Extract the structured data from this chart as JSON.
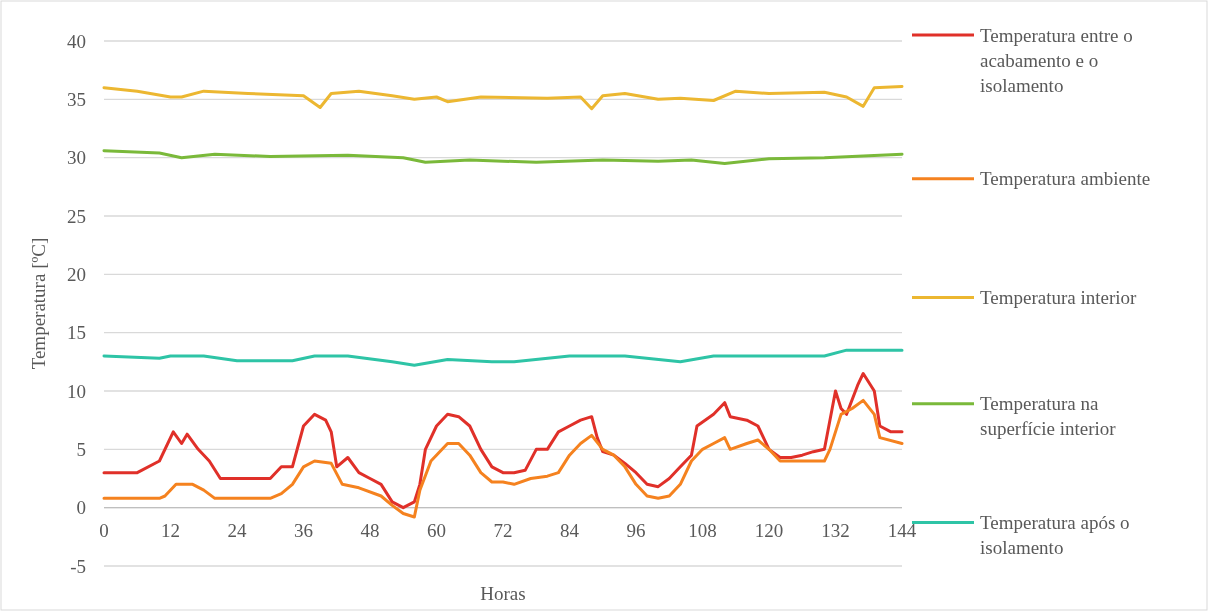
{
  "chart_data": {
    "type": "line",
    "xlabel": "Horas",
    "ylabel": "Temperatura [ºC]",
    "xlim": [
      0,
      144
    ],
    "xticks": [
      0,
      12,
      24,
      36,
      48,
      60,
      72,
      84,
      96,
      108,
      120,
      132,
      144
    ],
    "ylim": [
      -5,
      40
    ],
    "yticks": [
      -5,
      0,
      5,
      10,
      15,
      20,
      25,
      30,
      35,
      40
    ],
    "grid": "y",
    "legend": "right",
    "line_style": "solid",
    "series": [
      {
        "name": "Temperatura entre o acabamento e o isolamento",
        "color": "#e03029",
        "x": [
          0,
          2,
          6,
          10,
          12.5,
          14,
          15,
          17,
          19,
          21,
          24,
          30,
          32,
          34,
          36,
          38,
          40,
          41,
          42,
          44,
          46,
          48,
          50,
          52,
          54,
          56,
          57,
          58,
          60,
          62,
          64,
          66,
          68,
          70,
          72,
          74,
          76,
          78,
          80,
          82,
          84,
          86,
          88,
          89,
          90,
          92,
          94,
          96,
          98,
          100,
          102,
          104,
          106,
          107,
          110,
          112,
          113,
          116,
          118,
          120,
          122,
          124,
          126,
          128,
          130,
          132,
          133,
          134,
          136,
          137,
          139,
          140,
          142,
          144
        ],
        "values": [
          3,
          3,
          3,
          4,
          6.5,
          5.5,
          6.3,
          5,
          4,
          2.5,
          2.5,
          2.5,
          3.5,
          3.5,
          7,
          8,
          7.5,
          6.5,
          3.5,
          4.3,
          3,
          2.5,
          2,
          0.5,
          0,
          0.5,
          2,
          5,
          7,
          8,
          7.8,
          7,
          5,
          3.5,
          3,
          3,
          3.2,
          5,
          5,
          6.5,
          7,
          7.5,
          7.8,
          6,
          4.8,
          4.5,
          3.8,
          3,
          2,
          1.8,
          2.5,
          3.5,
          4.5,
          7,
          8,
          9,
          7.8,
          7.5,
          7,
          5,
          4.3,
          4.3,
          4.5,
          4.8,
          5,
          10,
          8.5,
          8,
          10.5,
          11.5,
          10,
          7,
          6.5,
          6.5
        ]
      },
      {
        "name": "Temperatura ambiente",
        "color": "#f5821f",
        "x": [
          0,
          10,
          11,
          13,
          16,
          18,
          20,
          30,
          32,
          34,
          36,
          38,
          41,
          43,
          46,
          50,
          52,
          54,
          56,
          57,
          59,
          62,
          64,
          66,
          68,
          70,
          72,
          74,
          77,
          80,
          82,
          84,
          86,
          88,
          90,
          92,
          94,
          96,
          98,
          100,
          102,
          104,
          106,
          108,
          110,
          112,
          113,
          116,
          118,
          120,
          122,
          126,
          130,
          131,
          133,
          135,
          137,
          139,
          140,
          144
        ],
        "values": [
          0.8,
          0.8,
          1,
          2,
          2,
          1.5,
          0.8,
          0.8,
          1.2,
          2,
          3.5,
          4,
          3.8,
          2,
          1.7,
          1,
          0.2,
          -0.5,
          -0.8,
          1.5,
          4,
          5.5,
          5.5,
          4.5,
          3,
          2.2,
          2.2,
          2,
          2.5,
          2.7,
          3,
          4.5,
          5.5,
          6.2,
          5,
          4.5,
          3.5,
          2,
          1,
          0.8,
          1,
          2,
          4,
          5,
          5.5,
          6,
          5,
          5.5,
          5.8,
          5,
          4,
          4,
          4,
          5,
          8,
          8.5,
          9.2,
          8,
          6,
          5.5
        ]
      },
      {
        "name": "Temperatura interior",
        "color": "#ecb731",
        "x": [
          0,
          6,
          12,
          14,
          18,
          26,
          36,
          39,
          41,
          46,
          52,
          56,
          60,
          62,
          68,
          80,
          86,
          88,
          90,
          94,
          100,
          104,
          110,
          114,
          120,
          130,
          134,
          137,
          139,
          144
        ],
        "values": [
          36,
          35.7,
          35.2,
          35.2,
          35.7,
          35.5,
          35.3,
          34.3,
          35.5,
          35.7,
          35.3,
          35,
          35.2,
          34.8,
          35.2,
          35.1,
          35.2,
          34.2,
          35.3,
          35.5,
          35,
          35.1,
          34.9,
          35.7,
          35.5,
          35.6,
          35.2,
          34.4,
          36,
          36.1
        ]
      },
      {
        "name": "Temperatura na superfície interior",
        "color": "#7ab93a",
        "x": [
          0,
          10,
          14,
          20,
          30,
          44,
          54,
          58,
          66,
          78,
          90,
          100,
          106,
          112,
          120,
          130,
          144
        ],
        "values": [
          30.6,
          30.4,
          30,
          30.3,
          30.1,
          30.2,
          30,
          29.6,
          29.8,
          29.6,
          29.8,
          29.7,
          29.8,
          29.5,
          29.9,
          30,
          30.3
        ]
      },
      {
        "name": "Temperatura após o isolamento",
        "color": "#2ec4a6",
        "x": [
          0,
          10,
          12,
          18,
          24,
          34,
          38,
          44,
          52,
          56,
          62,
          70,
          74,
          84,
          94,
          104,
          110,
          130,
          134,
          144
        ],
        "values": [
          13,
          12.8,
          13,
          13,
          12.6,
          12.6,
          13,
          13,
          12.5,
          12.2,
          12.7,
          12.5,
          12.5,
          13,
          13,
          12.5,
          13,
          13,
          13.5,
          13.5
        ]
      }
    ]
  }
}
